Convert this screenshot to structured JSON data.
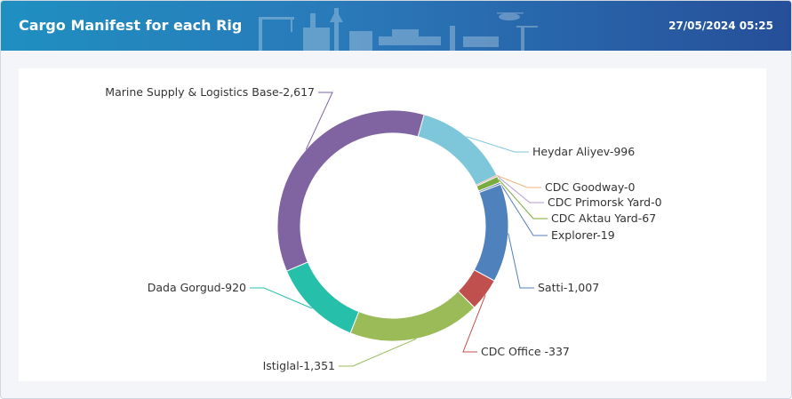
{
  "header": {
    "title": "Cargo Manifest for each Rig",
    "timestamp": "27/05/2024 05:25"
  },
  "chart_data": {
    "type": "pie",
    "variant": "donut",
    "title": "",
    "series": [
      {
        "name": "Heydar Aliyev",
        "value": 996,
        "label": "Heydar Aliyev-996",
        "color": "#7ec6d9"
      },
      {
        "name": "CDC Goodway",
        "value": 0,
        "label": "CDC Goodway-0",
        "color": "#f3b278"
      },
      {
        "name": "CDC Primorsk Yard",
        "value": 0,
        "label": "CDC Primorsk Yard-0",
        "color": "#b79bd0"
      },
      {
        "name": "CDC Aktau Yard",
        "value": 67,
        "label": "CDC Aktau Yard-67",
        "color": "#79ab3f"
      },
      {
        "name": "Explorer",
        "value": 19,
        "label": "Explorer-19",
        "color": "#5b7bbb"
      },
      {
        "name": "Satti",
        "value": 1007,
        "label": "Satti-1,007",
        "color": "#4f81bd"
      },
      {
        "name": "CDC Office",
        "value": 337,
        "label": "CDC Office -337",
        "color": "#c0504d"
      },
      {
        "name": "Istiglal",
        "value": 1351,
        "label": "Istiglal-1,351",
        "color": "#9bbb59"
      },
      {
        "name": "Dada Gorgud",
        "value": 920,
        "label": "Dada Gorgud-920",
        "color": "#26c0aa"
      },
      {
        "name": "Marine Supply & Logistics Base",
        "value": 2617,
        "label": "Marine Supply & Logistics Base-2,617",
        "color": "#8064a2"
      }
    ]
  }
}
